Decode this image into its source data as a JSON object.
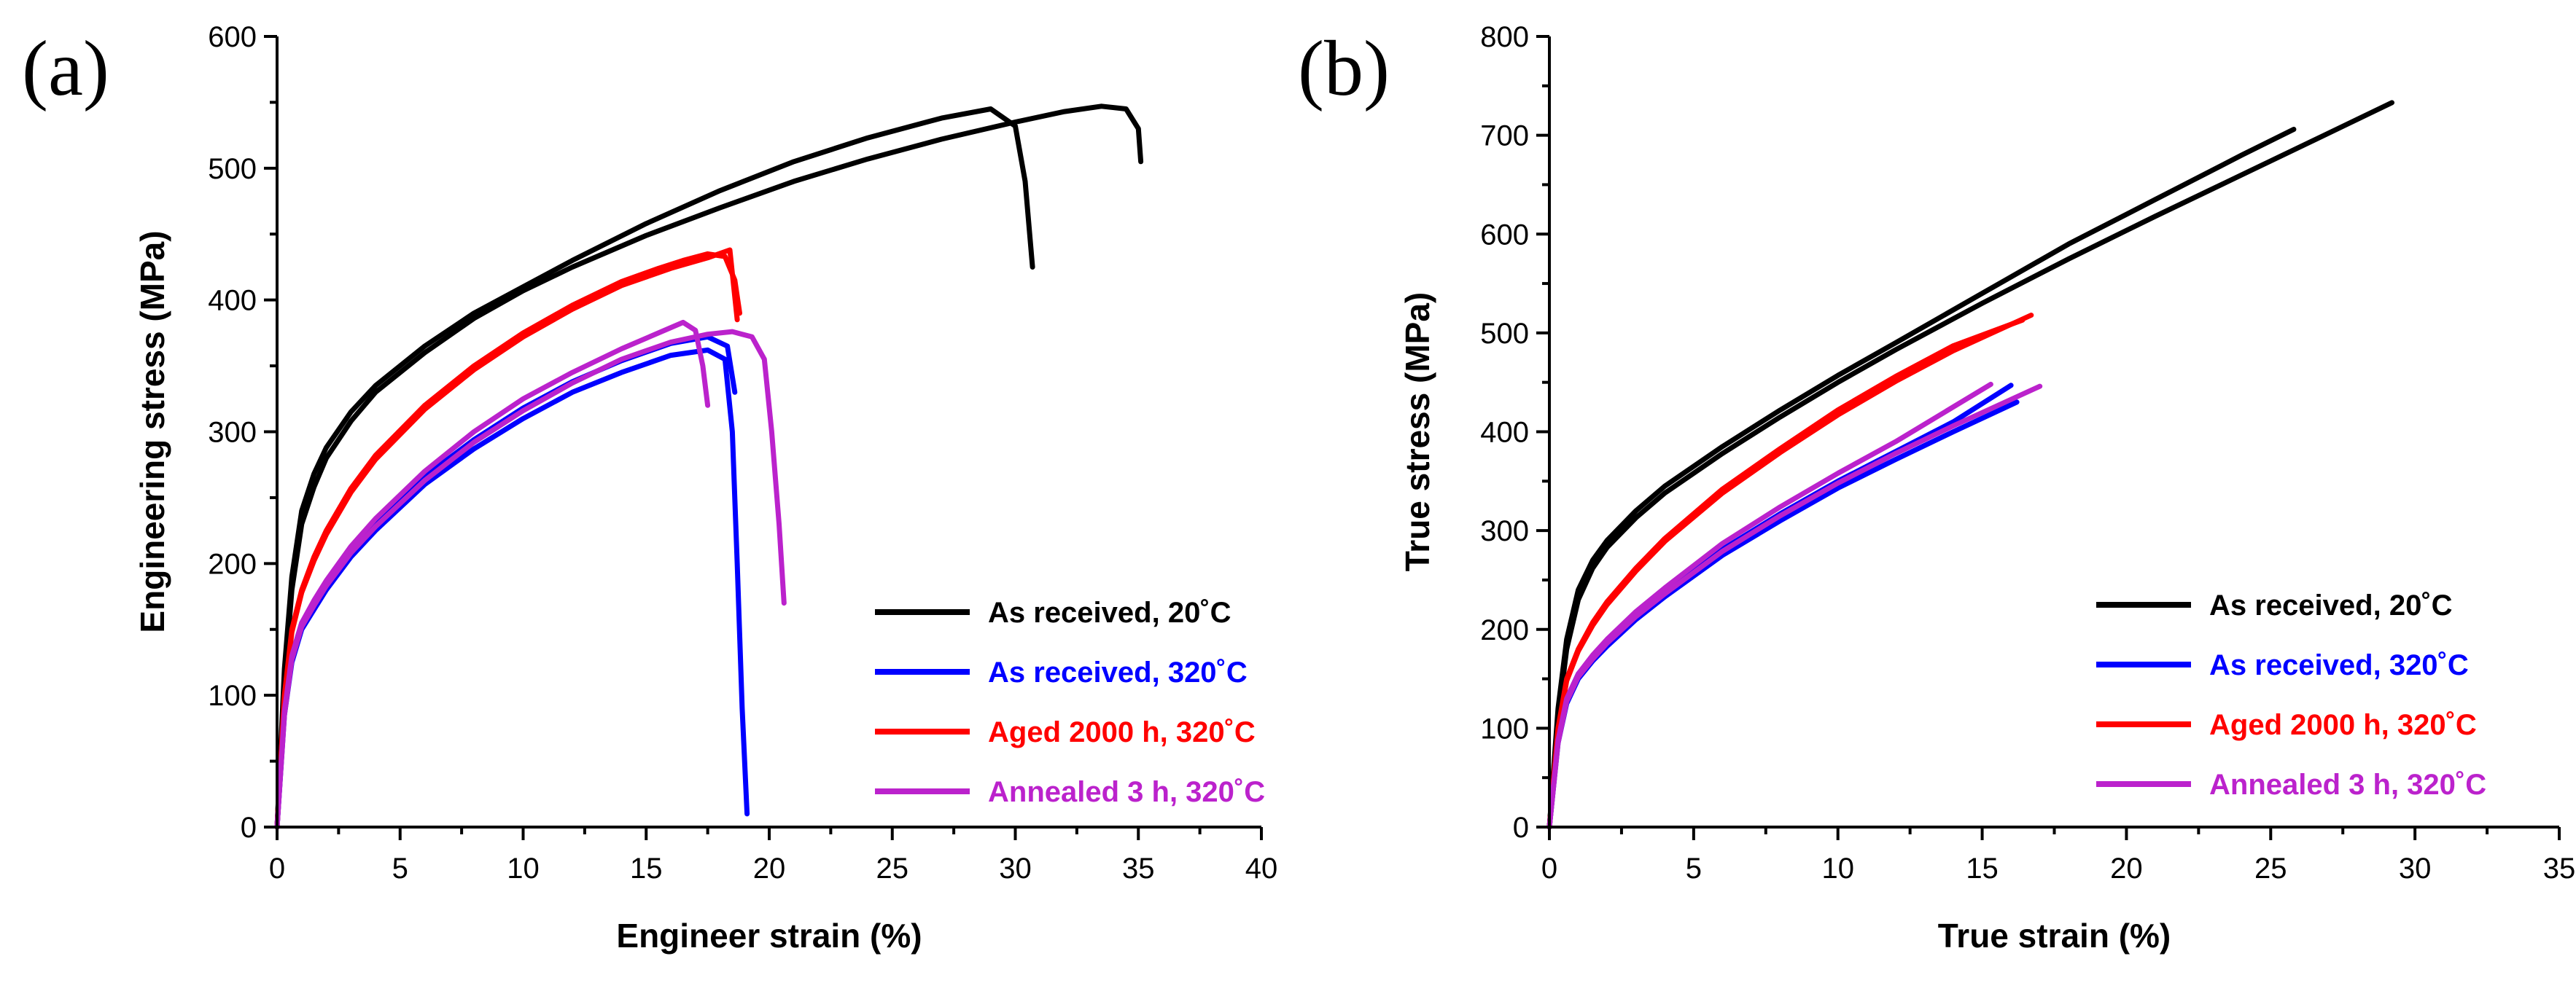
{
  "chart_data": [
    {
      "type": "line",
      "panel_label": "(a)",
      "xlabel": "Engineer strain (%)",
      "ylabel": "Engineering stress (MPa)",
      "xlim": [
        0,
        40
      ],
      "ylim": [
        0,
        600
      ],
      "xticks": [
        0,
        5,
        10,
        15,
        20,
        25,
        30,
        35,
        40
      ],
      "yticks": [
        0,
        100,
        200,
        300,
        400,
        500,
        600
      ],
      "legend": "lower-right",
      "series": [
        {
          "name": "As received, 20°C",
          "color": "#000000",
          "x": [
            0,
            0.3,
            0.6,
            1,
            1.5,
            2,
            3,
            4,
            6,
            8,
            10,
            12,
            15,
            18,
            21,
            24,
            27,
            29,
            30,
            30.4,
            30.7
          ],
          "y": [
            0,
            120,
            190,
            240,
            268,
            288,
            315,
            335,
            365,
            390,
            410,
            430,
            458,
            483,
            505,
            523,
            538,
            545,
            532,
            490,
            425
          ]
        },
        {
          "name": "As received, 20°C",
          "color": "#000000",
          "x": [
            0,
            0.3,
            0.6,
            1,
            1.5,
            2,
            3,
            4,
            6,
            8,
            10,
            12,
            15,
            18,
            21,
            24,
            27,
            30,
            32,
            33.5,
            34.5,
            35,
            35.1
          ],
          "y": [
            0,
            110,
            180,
            230,
            258,
            280,
            308,
            330,
            360,
            386,
            407,
            425,
            449,
            470,
            490,
            507,
            522,
            535,
            543,
            547,
            545,
            530,
            505
          ]
        },
        {
          "name": "As received, 320°C",
          "color": "#0000ff",
          "x": [
            0,
            0.3,
            0.6,
            1,
            1.5,
            2,
            3,
            4,
            6,
            8,
            10,
            12,
            14,
            16,
            17.5,
            18.2,
            18.5,
            18.7,
            18.9,
            19.1
          ],
          "y": [
            0,
            85,
            125,
            150,
            165,
            180,
            205,
            225,
            260,
            287,
            310,
            330,
            345,
            358,
            362,
            355,
            300,
            200,
            90,
            10
          ]
        },
        {
          "name": "As received, 320°C",
          "color": "#0000ff",
          "x": [
            0,
            0.3,
            0.6,
            1,
            1.5,
            2,
            3,
            4,
            6,
            8,
            10,
            12,
            14,
            16,
            17.5,
            18.3,
            18.6
          ],
          "y": [
            0,
            88,
            130,
            155,
            170,
            185,
            210,
            230,
            266,
            294,
            318,
            338,
            354,
            367,
            372,
            365,
            330
          ]
        },
        {
          "name": "Aged 2000 h, 320°C",
          "color": "#ff0000",
          "x": [
            0,
            0.3,
            0.6,
            1,
            1.5,
            2,
            3,
            4,
            6,
            8,
            10,
            12,
            14,
            15.5,
            16.5,
            17.5,
            18.2,
            18.6,
            18.8
          ],
          "y": [
            0,
            100,
            150,
            180,
            205,
            225,
            257,
            282,
            320,
            350,
            375,
            396,
            414,
            424,
            430,
            435,
            433,
            415,
            390
          ]
        },
        {
          "name": "Aged 2000 h, 320°C",
          "color": "#ff0000",
          "x": [
            0,
            0.3,
            0.6,
            1,
            1.5,
            2,
            3,
            4,
            6,
            8,
            10,
            12,
            14,
            16,
            17.5,
            18.4,
            18.7
          ],
          "y": [
            0,
            98,
            148,
            178,
            202,
            222,
            254,
            279,
            317,
            347,
            372,
            393,
            411,
            424,
            432,
            438,
            385
          ]
        },
        {
          "name": "Annealed 3 h, 320°C",
          "color": "#bb22cc",
          "x": [
            0,
            0.3,
            0.6,
            1,
            1.5,
            2,
            3,
            4,
            6,
            8,
            10,
            12,
            14,
            15.5,
            16.5,
            17,
            17.3,
            17.5
          ],
          "y": [
            0,
            88,
            130,
            155,
            172,
            187,
            213,
            234,
            270,
            300,
            325,
            345,
            363,
            375,
            383,
            377,
            350,
            320
          ]
        },
        {
          "name": "Annealed 3 h, 320°C",
          "color": "#bb22cc",
          "x": [
            0,
            0.3,
            0.6,
            1,
            1.5,
            2,
            3,
            4,
            6,
            8,
            10,
            12,
            14,
            16,
            17.5,
            18.5,
            19.3,
            19.8,
            20.1,
            20.4,
            20.6
          ],
          "y": [
            0,
            85,
            127,
            152,
            168,
            183,
            208,
            228,
            263,
            292,
            316,
            337,
            355,
            368,
            374,
            376,
            372,
            355,
            300,
            230,
            170
          ]
        }
      ],
      "legend_entries": [
        {
          "label": "As received, 20˚C",
          "color": "#000000"
        },
        {
          "label": "As received, 320˚C",
          "color": "#0000ff"
        },
        {
          "label": "Aged 2000 h, 320˚C",
          "color": "#ff0000"
        },
        {
          "label": "Annealed 3 h, 320˚C",
          "color": "#bb22cc"
        }
      ]
    },
    {
      "type": "line",
      "panel_label": "(b)",
      "xlabel": "True strain (%)",
      "ylabel": "True stress (MPa)",
      "xlim": [
        0,
        35
      ],
      "ylim": [
        0,
        800
      ],
      "xticks": [
        0,
        5,
        10,
        15,
        20,
        25,
        30,
        35
      ],
      "yticks": [
        0,
        100,
        200,
        300,
        400,
        500,
        600,
        700,
        800
      ],
      "legend": "lower-right",
      "series": [
        {
          "name": "As received, 20°C",
          "color": "#000000",
          "x": [
            0,
            0.3,
            0.6,
            1,
            1.5,
            2,
            3,
            4,
            6,
            8,
            10,
            12,
            15,
            18,
            21,
            24,
            25.8
          ],
          "y": [
            0,
            120,
            190,
            240,
            270,
            290,
            320,
            345,
            385,
            422,
            457,
            490,
            540,
            590,
            635,
            680,
            706
          ]
        },
        {
          "name": "As received, 20°C",
          "color": "#000000",
          "x": [
            0,
            0.3,
            0.6,
            1,
            1.5,
            2,
            3,
            4,
            6,
            8,
            10,
            12,
            15,
            18,
            21,
            24,
            27,
            29.2
          ],
          "y": [
            0,
            110,
            180,
            230,
            262,
            283,
            313,
            338,
            378,
            415,
            450,
            483,
            530,
            575,
            618,
            660,
            702,
            733
          ]
        },
        {
          "name": "As received, 320°C",
          "color": "#0000ff",
          "x": [
            0,
            0.3,
            0.6,
            1,
            1.5,
            2,
            3,
            4,
            6,
            8,
            10,
            12,
            14,
            16.2
          ],
          "y": [
            0,
            85,
            125,
            150,
            168,
            183,
            210,
            233,
            275,
            310,
            343,
            372,
            400,
            430
          ]
        },
        {
          "name": "As received, 320°C",
          "color": "#0000ff",
          "x": [
            0,
            0.3,
            0.6,
            1,
            1.5,
            2,
            3,
            4,
            6,
            8,
            10,
            12,
            14,
            16
          ],
          "y": [
            0,
            88,
            130,
            155,
            172,
            188,
            215,
            238,
            281,
            317,
            350,
            380,
            410,
            447
          ]
        },
        {
          "name": "Aged 2000 h, 320°C",
          "color": "#ff0000",
          "x": [
            0,
            0.3,
            0.6,
            1,
            1.5,
            2,
            3,
            4,
            6,
            8,
            10,
            12,
            14,
            16.4
          ],
          "y": [
            0,
            100,
            150,
            180,
            207,
            228,
            262,
            292,
            342,
            383,
            422,
            456,
            487,
            513
          ]
        },
        {
          "name": "Aged 2000 h, 320°C",
          "color": "#ff0000",
          "x": [
            0,
            0.3,
            0.6,
            1,
            1.5,
            2,
            3,
            4,
            6,
            8,
            10,
            12,
            14,
            16.7
          ],
          "y": [
            0,
            98,
            148,
            178,
            204,
            225,
            259,
            289,
            338,
            379,
            417,
            451,
            482,
            518
          ]
        },
        {
          "name": "Annealed 3 h, 320°C",
          "color": "#bb22cc",
          "x": [
            0,
            0.3,
            0.6,
            1,
            1.5,
            2,
            3,
            4,
            6,
            8,
            10,
            12,
            15.3
          ],
          "y": [
            0,
            88,
            130,
            155,
            174,
            190,
            218,
            242,
            287,
            324,
            358,
            390,
            448
          ]
        },
        {
          "name": "Annealed 3 h, 320°C",
          "color": "#bb22cc",
          "x": [
            0,
            0.3,
            0.6,
            1,
            1.5,
            2,
            3,
            4,
            6,
            8,
            10,
            12,
            14,
            17
          ],
          "y": [
            0,
            85,
            127,
            152,
            170,
            186,
            213,
            236,
            279,
            315,
            348,
            378,
            406,
            446
          ]
        }
      ],
      "legend_entries": [
        {
          "label": "As received, 20˚C",
          "color": "#000000"
        },
        {
          "label": "As received, 320˚C",
          "color": "#0000ff"
        },
        {
          "label": "Aged 2000 h, 320˚C",
          "color": "#ff0000"
        },
        {
          "label": "Annealed 3 h, 320˚C",
          "color": "#bb22cc"
        }
      ]
    }
  ]
}
